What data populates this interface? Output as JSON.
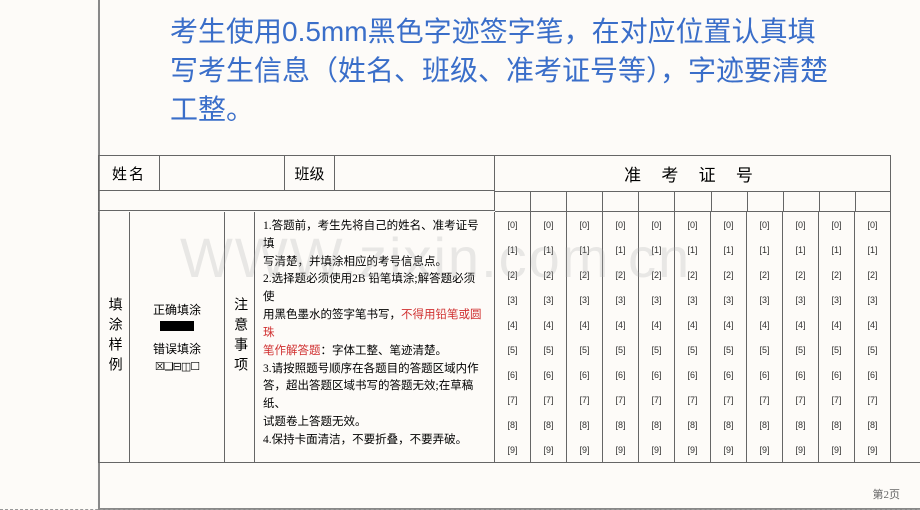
{
  "instruction": "考生使用0.5mm黑色字迹签字笔，在对应位置认真填写考生信息（姓名、班级、准考证号等），字迹要清楚工整。",
  "labels": {
    "name": "姓名",
    "class": "班级",
    "admission_number": "准 考 证 号",
    "fill_sample": "填涂样例",
    "correct_fill": "正确填涂",
    "wrong_fill": "错误填涂",
    "wrong_symbols": "☒❏⊟◫☐",
    "notice": "注意事项"
  },
  "notices": {
    "n1a": "1.答题前，考生先将自己的姓名、准考证号填",
    "n1b": "写清楚，并填涂相应的考号信息点。",
    "n2a": "2.选择题必须使用2B 铅笔填涂;解答题必须使",
    "n2b_pre": "用黑色墨水的签字笔书写，",
    "n2b_red": "不得用铅笔或圆珠",
    "n2c_red": "笔作解答题",
    "n2c_post": "：字体工整、笔迹清楚。",
    "n3a": "3.请按照题号顺序在各题目的答题区域内作",
    "n3b": "答，超出答题区域书写的答题无效;在草稿纸、",
    "n3c": "试题卷上答题无效。",
    "n4": "4.保持卡面清洁，不要折叠，不要弄破。"
  },
  "bubble_digits": [
    "0",
    "1",
    "2",
    "3",
    "4",
    "5",
    "6",
    "7",
    "8",
    "9"
  ],
  "bubble_columns": 11,
  "watermark": "WWW.zixin.com.cn",
  "page_number": "第2页",
  "colors": {
    "instruction_text": "#3a6ec9",
    "border": "#666666",
    "background": "#fdfbf8",
    "red_text": "#d03030",
    "watermark": "rgba(170,170,170,0.25)"
  }
}
